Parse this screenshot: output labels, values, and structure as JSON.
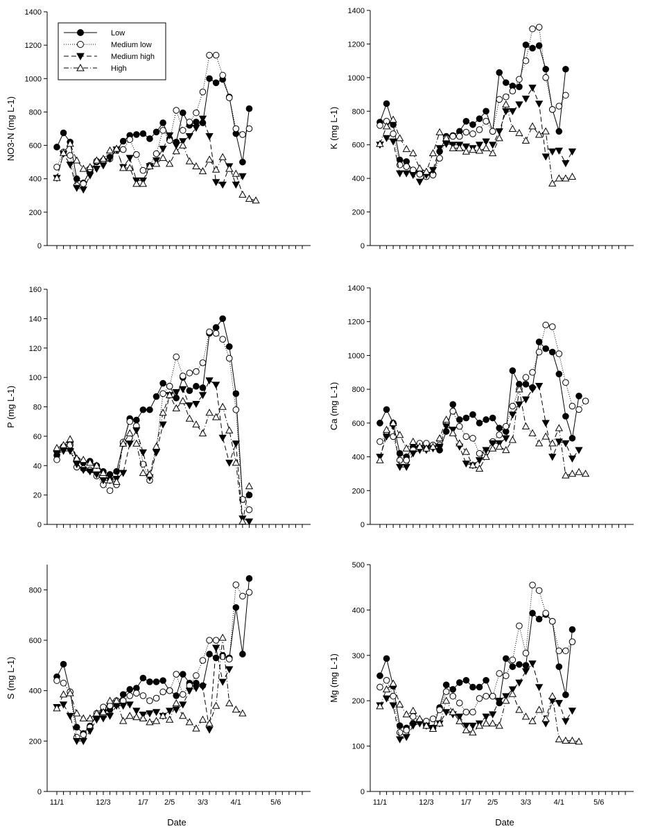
{
  "figure": {
    "date_ticks": [
      "11/1",
      "12/3",
      "1/7",
      "2/5",
      "3/3",
      "4/1",
      "5/6"
    ],
    "date_tick_positions": [
      0,
      7,
      13,
      17,
      22,
      27,
      33
    ],
    "n_points": 38,
    "xlabel": "Date"
  },
  "legend": {
    "entries": [
      "Low",
      "Medium low",
      "Medium high",
      "High"
    ],
    "location": "top-left of first panel"
  },
  "chart_data": [
    {
      "type": "line",
      "title": "",
      "ylabel": "NO3-N (mg L-1)",
      "ylim": [
        0,
        1400
      ],
      "yticks": [
        0,
        200,
        400,
        600,
        800,
        1000,
        1200,
        1400
      ],
      "series": [
        {
          "name": "Low",
          "values": [
            590,
            675,
            620,
            400,
            375,
            445,
            500,
            510,
            530,
            570,
            625,
            660,
            665,
            670,
            640,
            680,
            735,
            640,
            620,
            795,
            720,
            740,
            735,
            1000,
            975,
            995,
            890,
            670,
            500,
            820
          ]
        },
        {
          "name": "Medium low",
          "values": [
            470,
            560,
            540,
            360,
            370,
            460,
            505,
            510,
            520,
            570,
            575,
            635,
            545,
            450,
            480,
            550,
            690,
            630,
            810,
            690,
            740,
            795,
            920,
            1140,
            1140,
            1020,
            885,
            700,
            665,
            700
          ]
        },
        {
          "name": "Medium high",
          "values": [
            405,
            550,
            485,
            345,
            335,
            420,
            460,
            480,
            520,
            575,
            470,
            525,
            390,
            390,
            475,
            510,
            580,
            660,
            600,
            625,
            655,
            705,
            760,
            655,
            380,
            365,
            475,
            365,
            415
          ]
        },
        {
          "name": "High",
          "values": [
            405,
            555,
            610,
            510,
            460,
            470,
            510,
            520,
            570,
            580,
            465,
            465,
            370,
            370,
            475,
            490,
            525,
            490,
            565,
            600,
            505,
            475,
            445,
            515,
            455,
            530,
            460,
            430,
            305,
            280,
            270
          ]
        }
      ]
    },
    {
      "type": "line",
      "title": "",
      "ylabel": "K (mg L-1)",
      "ylim": [
        0,
        1400
      ],
      "yticks": [
        0,
        200,
        400,
        600,
        800,
        1000,
        1200,
        1400
      ],
      "series": [
        {
          "name": "Low",
          "values": [
            735,
            845,
            720,
            510,
            500,
            445,
            440,
            420,
            425,
            560,
            650,
            655,
            680,
            740,
            720,
            755,
            800,
            680,
            1030,
            970,
            950,
            945,
            1195,
            1175,
            1190,
            1050,
            810,
            680,
            1050
          ]
        },
        {
          "name": "Medium low",
          "values": [
            715,
            740,
            665,
            480,
            470,
            450,
            425,
            410,
            420,
            520,
            640,
            650,
            650,
            675,
            665,
            690,
            740,
            680,
            870,
            885,
            920,
            990,
            1100,
            1290,
            1300,
            1000,
            810,
            830,
            895
          ]
        },
        {
          "name": "Medium high",
          "values": [
            600,
            640,
            620,
            430,
            430,
            420,
            380,
            420,
            450,
            580,
            605,
            600,
            600,
            590,
            580,
            600,
            620,
            600,
            680,
            800,
            800,
            840,
            875,
            940,
            845,
            530,
            560,
            565,
            490,
            560
          ]
        },
        {
          "name": "High",
          "values": [
            605,
            710,
            750,
            640,
            575,
            550,
            460,
            440,
            550,
            675,
            640,
            580,
            580,
            560,
            570,
            565,
            580,
            550,
            640,
            840,
            695,
            670,
            625,
            710,
            660,
            680,
            370,
            400,
            400,
            410
          ]
        }
      ]
    },
    {
      "type": "line",
      "title": "",
      "ylabel": "P (mg L-1)",
      "ylim": [
        0,
        160
      ],
      "yticks": [
        0,
        20,
        40,
        60,
        80,
        100,
        120,
        140,
        160
      ],
      "series": [
        {
          "name": "Low",
          "values": [
            47,
            53,
            56,
            44,
            42,
            43,
            40,
            36,
            34,
            36,
            55,
            72,
            71,
            78,
            78,
            87,
            96,
            94,
            86,
            100,
            91,
            94,
            93,
            130,
            134,
            140,
            121,
            89,
            17,
            20
          ]
        },
        {
          "name": "Medium low",
          "values": [
            44,
            52,
            54,
            39,
            38,
            37,
            33,
            27,
            23,
            27,
            56,
            70,
            67,
            41,
            30,
            51,
            89,
            94,
            114,
            101,
            103,
            104,
            110,
            131,
            130,
            126,
            113,
            78,
            17,
            10
          ]
        },
        {
          "name": "Medium high",
          "values": [
            48,
            50,
            50,
            41,
            37,
            36,
            34,
            30,
            30,
            31,
            35,
            55,
            64,
            49,
            32,
            49,
            68,
            88,
            90,
            92,
            81,
            82,
            88,
            98,
            95,
            59,
            42,
            55,
            4,
            2
          ]
        },
        {
          "name": "High",
          "values": [
            52,
            54,
            58,
            45,
            44,
            42,
            40,
            35,
            30,
            29,
            55,
            62,
            55,
            35,
            34,
            53,
            76,
            88,
            79,
            84,
            72,
            68,
            62,
            76,
            73,
            80,
            64,
            42,
            2,
            26
          ]
        }
      ]
    },
    {
      "type": "line",
      "title": "",
      "ylabel": "Ca (mg L-1)",
      "ylim": [
        0,
        1400
      ],
      "yticks": [
        0,
        200,
        400,
        600,
        800,
        1000,
        1200,
        1400
      ],
      "series": [
        {
          "name": "Low",
          "values": [
            600,
            680,
            600,
            420,
            400,
            460,
            460,
            470,
            460,
            440,
            550,
            710,
            620,
            630,
            650,
            600,
            620,
            630,
            570,
            550,
            910,
            830,
            830,
            810,
            1080,
            1040,
            1020,
            890,
            640,
            510,
            760
          ]
        },
        {
          "name": "Medium low",
          "values": [
            490,
            530,
            520,
            380,
            380,
            440,
            480,
            480,
            470,
            470,
            600,
            670,
            580,
            520,
            510,
            420,
            430,
            490,
            530,
            580,
            700,
            800,
            870,
            900,
            1020,
            1180,
            1170,
            1010,
            840,
            700,
            680,
            730
          ]
        },
        {
          "name": "Medium high",
          "values": [
            400,
            520,
            580,
            340,
            340,
            420,
            440,
            440,
            450,
            460,
            580,
            560,
            460,
            360,
            350,
            380,
            440,
            480,
            480,
            510,
            650,
            710,
            740,
            800,
            820,
            600,
            400,
            490,
            480,
            390,
            440
          ]
        },
        {
          "name": "High",
          "values": [
            380,
            560,
            600,
            530,
            450,
            490,
            460,
            450,
            460,
            510,
            620,
            540,
            480,
            430,
            350,
            330,
            400,
            450,
            460,
            440,
            500,
            800,
            580,
            540,
            480,
            520,
            480,
            570,
            290,
            300,
            310,
            300
          ]
        }
      ]
    },
    {
      "type": "line",
      "title": "",
      "ylabel": "S (mg L-1)",
      "ylim": [
        0,
        900
      ],
      "yticks": [
        0,
        200,
        400,
        600,
        800
      ],
      "series": [
        {
          "name": "Low",
          "values": [
            455,
            505,
            395,
            255,
            230,
            260,
            300,
            320,
            325,
            345,
            385,
            405,
            410,
            450,
            435,
            435,
            440,
            400,
            380,
            465,
            430,
            430,
            420,
            545,
            530,
            540,
            530,
            730,
            545,
            845
          ]
        },
        {
          "name": "Medium low",
          "values": [
            440,
            430,
            395,
            215,
            225,
            255,
            310,
            335,
            340,
            360,
            360,
            380,
            390,
            380,
            360,
            370,
            395,
            400,
            465,
            385,
            420,
            460,
            520,
            600,
            600,
            535,
            525,
            820,
            775,
            790
          ]
        },
        {
          "name": "Medium high",
          "values": [
            335,
            345,
            300,
            200,
            200,
            240,
            285,
            290,
            300,
            340,
            340,
            345,
            320,
            305,
            310,
            315,
            300,
            320,
            325,
            345,
            400,
            410,
            415,
            245,
            570,
            435,
            485
          ]
        },
        {
          "name": "High",
          "values": [
            330,
            385,
            390,
            310,
            290,
            290,
            310,
            315,
            360,
            360,
            280,
            300,
            295,
            290,
            275,
            280,
            300,
            285,
            350,
            300,
            275,
            250,
            285,
            270,
            340,
            610,
            350,
            325,
            310
          ]
        }
      ]
    },
    {
      "type": "line",
      "title": "",
      "ylabel": "Mg (mg L-1)",
      "ylim": [
        0,
        500
      ],
      "yticks": [
        0,
        100,
        200,
        300,
        400,
        500
      ],
      "series": [
        {
          "name": "Low",
          "values": [
            255,
            293,
            232,
            145,
            140,
            150,
            155,
            145,
            140,
            185,
            235,
            225,
            240,
            245,
            230,
            230,
            245,
            210,
            195,
            293,
            275,
            280,
            278,
            393,
            380,
            390,
            375,
            275,
            213,
            357
          ]
        },
        {
          "name": "Medium low",
          "values": [
            230,
            245,
            210,
            130,
            135,
            165,
            155,
            155,
            160,
            180,
            220,
            210,
            195,
            175,
            175,
            205,
            210,
            210,
            260,
            255,
            290,
            365,
            305,
            455,
            443,
            393,
            375,
            310,
            310,
            330
          ]
        },
        {
          "name": "Medium high",
          "values": [
            190,
            205,
            190,
            115,
            120,
            145,
            150,
            145,
            140,
            150,
            175,
            170,
            165,
            145,
            145,
            150,
            165,
            170,
            200,
            210,
            225,
            240,
            265,
            282,
            230,
            150,
            200,
            195,
            155,
            178
          ]
        },
        {
          "name": "High",
          "values": [
            188,
            225,
            238,
            192,
            170,
            178,
            160,
            145,
            138,
            150,
            200,
            175,
            155,
            135,
            130,
            145,
            150,
            150,
            145,
            200,
            215,
            180,
            165,
            155,
            180,
            160,
            210,
            115,
            112,
            112,
            110
          ]
        }
      ]
    }
  ]
}
